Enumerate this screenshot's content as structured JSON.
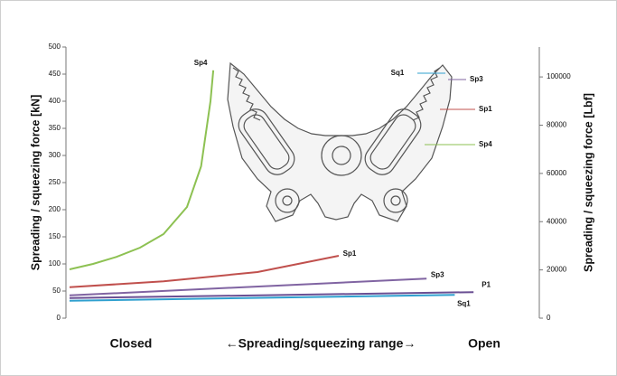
{
  "chart_data": {
    "type": "line",
    "y_label": "Spreading / squeezing force [kN]",
    "y2_label": "Spreading / squeezing  force [Lbf]",
    "x_label": "←Spreading/squeezing range→",
    "x_start_label": "Closed",
    "x_end_label": "Open",
    "xlim": [
      0,
      100
    ],
    "ylim": [
      0,
      500
    ],
    "yticks": [
      0,
      50,
      100,
      150,
      200,
      250,
      300,
      350,
      400,
      450,
      500
    ],
    "y2lim": [
      0,
      112404
    ],
    "y2ticks": [
      0,
      20000,
      40000,
      60000,
      80000,
      100000
    ],
    "series": [
      {
        "name": "Sp4",
        "color": "#8dc152",
        "x": [
          0,
          5,
          10,
          15,
          20,
          25,
          28,
          30,
          30.6
        ],
        "values": [
          90,
          100,
          113,
          130,
          155,
          205,
          280,
          400,
          457
        ]
      },
      {
        "name": "Sp1",
        "color": "#c0504d",
        "x": [
          0,
          20,
          40,
          57.3
        ],
        "values": [
          57,
          68,
          85,
          115
        ]
      },
      {
        "name": "Sp3",
        "color": "#8064a2",
        "x": [
          0,
          76
        ],
        "values": [
          42,
          73
        ]
      },
      {
        "name": "P1",
        "color": "#6a4f93",
        "x": [
          0,
          86
        ],
        "values": [
          37,
          48
        ]
      },
      {
        "name": "Sq1",
        "color": "#2fa0cf",
        "x": [
          0,
          82
        ],
        "values": [
          32,
          43
        ]
      }
    ]
  }
}
